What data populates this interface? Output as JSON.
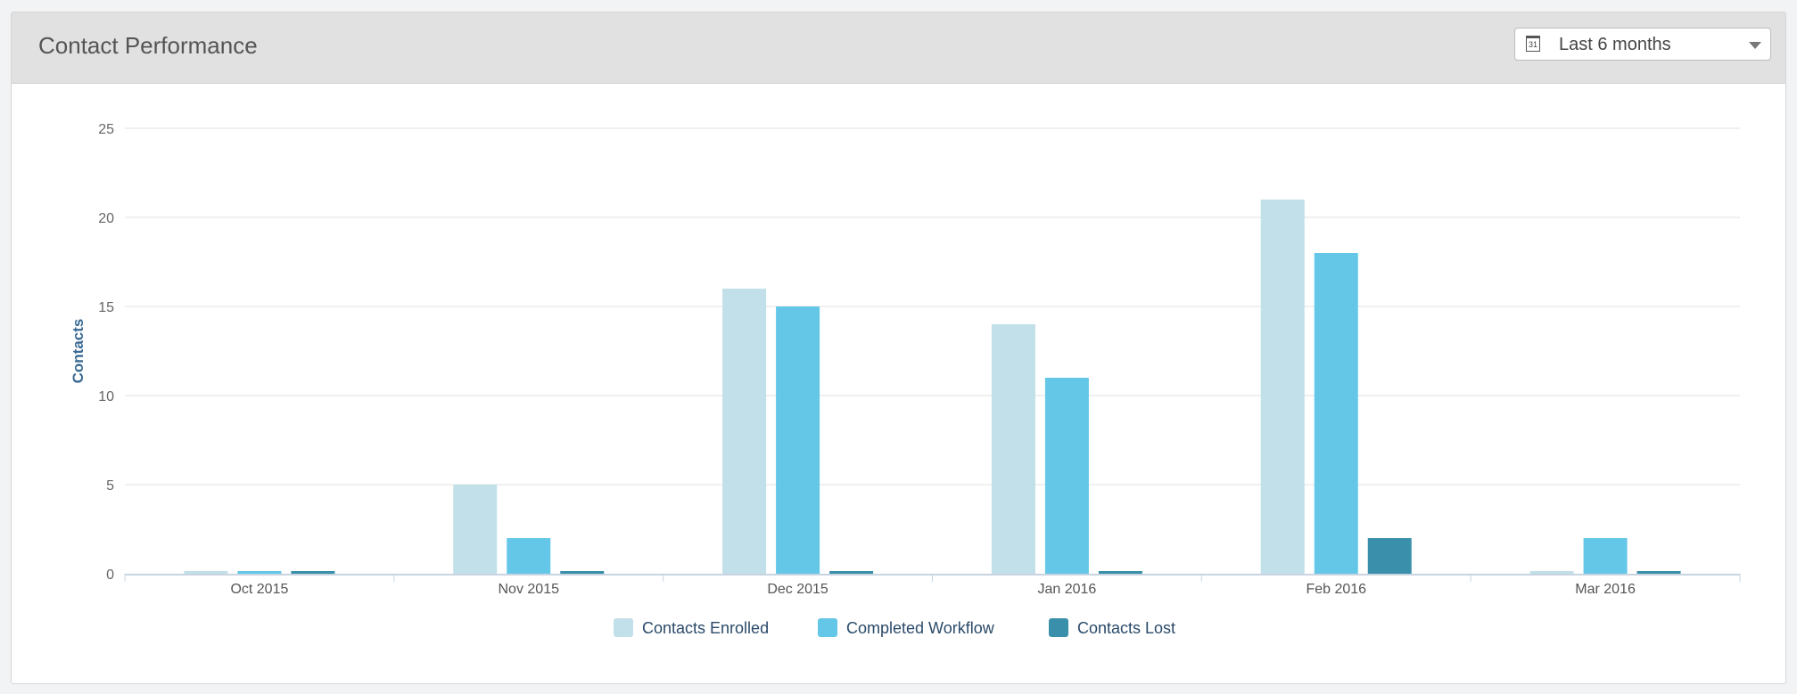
{
  "header": {
    "title": "Contact Performance",
    "range_label": "Last 6 months",
    "calendar_day": "31"
  },
  "chart_data": {
    "type": "bar",
    "title": "",
    "xlabel": "",
    "ylabel": "Contacts",
    "ylim": [
      0,
      25
    ],
    "yticks": [
      0,
      5,
      10,
      15,
      20,
      25
    ],
    "grid": true,
    "legend": "bottom",
    "categories": [
      "Oct 2015",
      "Nov 2015",
      "Dec 2015",
      "Jan 2016",
      "Feb 2016",
      "Mar 2016"
    ],
    "series": [
      {
        "name": "Contacts Enrolled",
        "color": "#c2e0e9",
        "values": [
          0,
          5,
          16,
          14,
          21,
          0
        ]
      },
      {
        "name": "Completed Workflow",
        "color": "#64c7e7",
        "values": [
          0,
          2,
          15,
          11,
          18,
          2
        ]
      },
      {
        "name": "Contacts Lost",
        "color": "#3a90ab",
        "values": [
          0,
          0,
          0,
          0,
          2,
          0
        ]
      }
    ]
  }
}
